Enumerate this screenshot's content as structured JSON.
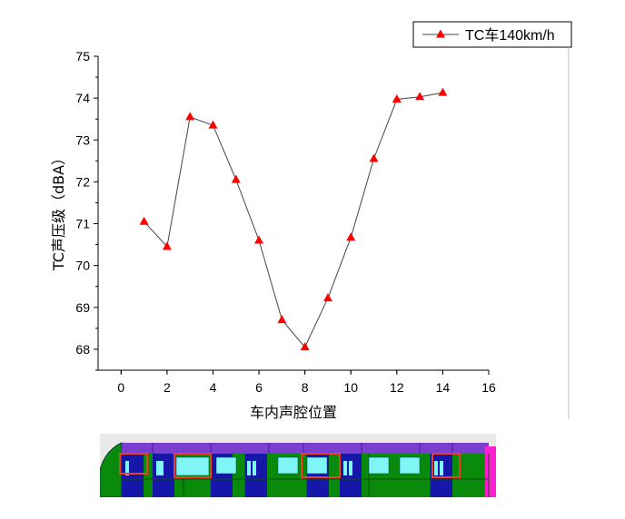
{
  "chart_data": {
    "type": "line",
    "xlabel": "车内声腔位置",
    "ylabel": "TC声压级（dBA）",
    "xlim": [
      -1,
      16
    ],
    "ylim": [
      67.5,
      75
    ],
    "x_ticks": [
      0,
      2,
      4,
      6,
      8,
      10,
      12,
      14,
      16
    ],
    "y_ticks": [
      68,
      69,
      70,
      71,
      72,
      73,
      74,
      75
    ],
    "grid": false,
    "legend_position": "top-right",
    "series": [
      {
        "name": "TC车140km/h",
        "color": "#ff0000",
        "marker": "triangle",
        "x": [
          1,
          2,
          3,
          4,
          5,
          6,
          7,
          8,
          9,
          10,
          11,
          12,
          13,
          14
        ],
        "y": [
          71.05,
          70.45,
          73.55,
          73.35,
          72.05,
          70.6,
          68.7,
          68.05,
          69.22,
          70.67,
          72.55,
          73.97,
          74.03,
          74.13
        ]
      }
    ]
  },
  "colors": {
    "line": "#444444",
    "marker": "#ff0000",
    "train_body": "#0a8a0a",
    "train_roof": "#7b3fd0",
    "train_window": "#7ff5f5",
    "train_door": "#1616a8",
    "highlight_box": "#e8402a",
    "train_end": "#ff1fd0"
  }
}
